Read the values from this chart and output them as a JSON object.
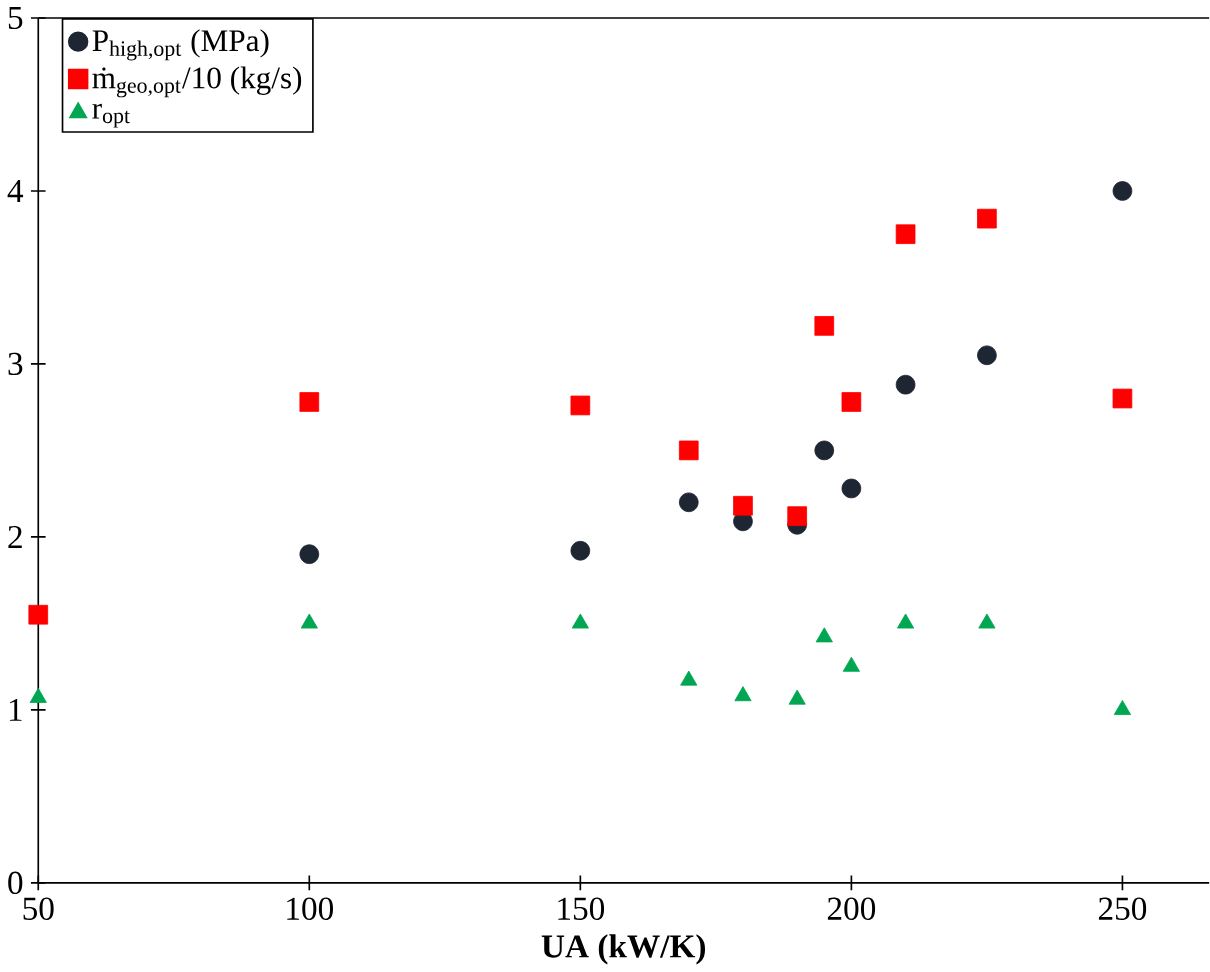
{
  "chart_data": {
    "type": "scatter",
    "xlabel": "**UA (kW/K)**",
    "xlim": [
      50,
      266
    ],
    "ylim": [
      0,
      5
    ],
    "xticks": [
      50,
      100,
      150,
      200,
      250
    ],
    "yticks": [
      0,
      1,
      2,
      3,
      4,
      5
    ],
    "grid": false,
    "legend": "top left",
    "series": [
      {
        "name": "P$_{high,opt}$ (MPa)",
        "color": "#1f2633",
        "marker": "circle",
        "x": [
          100,
          150,
          170,
          180,
          190,
          195,
          200,
          210,
          225,
          250
        ],
        "values": [
          1.9,
          1.92,
          2.2,
          2.09,
          2.07,
          2.5,
          2.28,
          2.88,
          3.05,
          4.0
        ]
      },
      {
        "name": "ṁ$_{geo,opt}$/10 (kg/s)",
        "color": "#ff0000",
        "marker": "square",
        "x": [
          50,
          100,
          150,
          170,
          180,
          190,
          195,
          200,
          210,
          225,
          250
        ],
        "values": [
          1.55,
          2.78,
          2.76,
          2.5,
          2.18,
          2.12,
          3.22,
          2.78,
          3.75,
          3.84,
          2.8
        ]
      },
      {
        "name": "r$_{opt}$",
        "color": "#00a651",
        "marker": "triangle",
        "x": [
          50,
          100,
          150,
          170,
          180,
          190,
          195,
          200,
          210,
          225,
          250
        ],
        "values": [
          1.07,
          1.5,
          1.5,
          1.17,
          1.08,
          1.06,
          1.42,
          1.25,
          1.5,
          1.5,
          1.0
        ]
      }
    ]
  }
}
